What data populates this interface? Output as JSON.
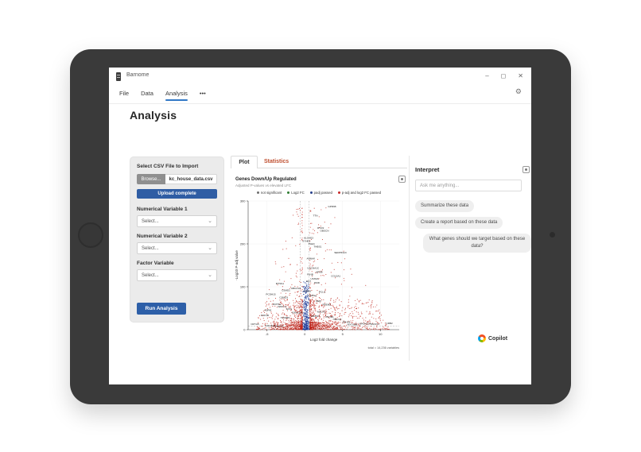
{
  "titlebar": {
    "app_title": "Barnome",
    "minimize": "–",
    "maximize": "◻",
    "close": "✕"
  },
  "menubar": {
    "items": [
      {
        "label": "File",
        "active": false
      },
      {
        "label": "Data",
        "active": false
      },
      {
        "label": "Analysis",
        "active": true
      },
      {
        "label": "•••",
        "active": false
      }
    ],
    "settings_icon": "⚙"
  },
  "page": {
    "heading": "Analysis"
  },
  "import_panel": {
    "title": "Select CSV File to Import",
    "browse_label": "Browse...",
    "filename": "kc_house_data.csv",
    "upload_status": "Upload complete",
    "chevron_icon": "⌄",
    "variables": [
      {
        "label": "Numerical Variable 1",
        "value": "Select..."
      },
      {
        "label": "Numerical Variable 2",
        "value": "Select..."
      },
      {
        "label": "Factor Variable",
        "value": "Select..."
      }
    ],
    "run_button": "Run Analysis"
  },
  "tabs": [
    {
      "label": "Plot",
      "active": true
    },
    {
      "label": "Statistics",
      "active": false
    }
  ],
  "chart_data": {
    "type": "scatter",
    "title": "Genes Down/Up Regulated",
    "subtitle": "Adjusted P-values vs elevated LFC",
    "xlabel": "Log2 fold change",
    "ylabel": "-Log10 P-adj value",
    "xlim": [
      -7.5,
      12.5
    ],
    "ylim": [
      0,
      300
    ],
    "xticks": [
      -5,
      0,
      5,
      10
    ],
    "yticks": [
      0,
      100,
      200,
      300
    ],
    "threshold_vlines": [
      -0.58,
      0.58
    ],
    "threshold_hline": 8,
    "grid": true,
    "legend_position": "top",
    "legend": [
      {
        "label": "not significant",
        "color": "#6e6e6e"
      },
      {
        "label": "Log2 FC",
        "color": "#2e7d32"
      },
      {
        "label": "padj passed",
        "color": "#27408b"
      },
      {
        "label": "p-adj and log2 FC passed",
        "color": "#c62828"
      }
    ],
    "point_clusters": [
      {
        "name": "p-adj and log2 FC passed",
        "color": "#c0281e",
        "count": 1400,
        "x_range": [
          -7,
          11.5
        ],
        "y_profile": "volcano-tails"
      },
      {
        "name": "padj passed",
        "color": "#1f3d99",
        "count": 380,
        "x_range": [
          -0.4,
          0.8
        ],
        "y_profile": "central-band"
      }
    ],
    "labeled_points": [
      {
        "gene": "GPR98",
        "x": 3.6,
        "y": 283
      },
      {
        "gene": "TTN",
        "x": 1.4,
        "y": 262
      },
      {
        "gene": "RYR2",
        "x": 2.1,
        "y": 233
      },
      {
        "gene": "OBSCN",
        "x": 2.6,
        "y": 227
      },
      {
        "gene": "ALOXE3",
        "x": 0.5,
        "y": 210
      },
      {
        "gene": "SYNE1",
        "x": 0.2,
        "y": 203
      },
      {
        "gene": "PLEC",
        "x": 0.9,
        "y": 196
      },
      {
        "gene": "THBS1",
        "x": 1.7,
        "y": 190
      },
      {
        "gene": "SERPINA3",
        "x": 4.7,
        "y": 176
      },
      {
        "gene": "AHNAK",
        "x": 0.8,
        "y": 162
      },
      {
        "gene": "CACNA1C",
        "x": 1.1,
        "y": 140
      },
      {
        "gene": "APOB",
        "x": 1.9,
        "y": 131
      },
      {
        "gene": "FLNB",
        "x": 0.7,
        "y": 125
      },
      {
        "gene": "COL5A1",
        "x": 4.1,
        "y": 121
      },
      {
        "gene": "USH2A",
        "x": 1.3,
        "y": 115
      },
      {
        "gene": "DST",
        "x": 0.5,
        "y": 109
      },
      {
        "gene": "DMD",
        "x": 1.6,
        "y": 106
      },
      {
        "gene": "MTSS1",
        "x": -3.3,
        "y": 104
      },
      {
        "gene": "ABCA13",
        "x": -1.2,
        "y": 93
      },
      {
        "gene": "CSMD1",
        "x": -2.5,
        "y": 88
      },
      {
        "gene": "LAMA5",
        "x": 0.3,
        "y": 86
      },
      {
        "gene": "PCLO",
        "x": 2.3,
        "y": 84
      },
      {
        "gene": "PCDH15",
        "x": -4.5,
        "y": 79
      },
      {
        "gene": "HSPG2",
        "x": 1.0,
        "y": 76
      },
      {
        "gene": "CSMD3",
        "x": -2.8,
        "y": 71
      },
      {
        "gene": "NEB",
        "x": 1.8,
        "y": 63
      },
      {
        "gene": "DCHS2",
        "x": -3.7,
        "y": 56
      },
      {
        "gene": "FREM2",
        "x": 2.9,
        "y": 55
      },
      {
        "gene": "WDFY3",
        "x": -3.0,
        "y": 50
      },
      {
        "gene": "FAT4",
        "x": -2.1,
        "y": 44
      },
      {
        "gene": "ASPM",
        "x": -4.9,
        "y": 42
      },
      {
        "gene": "MACF1",
        "x": 2.2,
        "y": 38
      },
      {
        "gene": "KIAA1109",
        "x": -1.0,
        "y": 36
      },
      {
        "gene": "POF1B",
        "x": -5.3,
        "y": 30
      },
      {
        "gene": "FBXW7",
        "x": 1.4,
        "y": 28
      },
      {
        "gene": "PKHD1",
        "x": 3.3,
        "y": 26
      },
      {
        "gene": "TRIOBP",
        "x": -2.6,
        "y": 24
      },
      {
        "gene": "HMCN1",
        "x": 4.3,
        "y": 20
      },
      {
        "gene": "ZFHX4",
        "x": 5.5,
        "y": 14
      },
      {
        "gene": "CRB2",
        "x": 11.2,
        "y": 11
      },
      {
        "gene": "WASHC2A",
        "x": 8.0,
        "y": 10
      },
      {
        "gene": "MAST4",
        "x": 9.3,
        "y": 9
      },
      {
        "gene": "CMYA5",
        "x": -6.6,
        "y": 9
      },
      {
        "gene": "MYO18B",
        "x": 6.3,
        "y": 8
      },
      {
        "gene": "COL6A6",
        "x": -4.6,
        "y": 6
      },
      {
        "gene": "SH3TC2",
        "x": -3.4,
        "y": 5
      }
    ],
    "caption": "total = 14,236 variables"
  },
  "interpret": {
    "title": "Interpret",
    "input_placeholder": "Ask me anything...",
    "suggestions": [
      "Summarize these data",
      "Create a report based on these data",
      "What genes should we target based on these data?"
    ]
  },
  "branding": {
    "copilot_label": "Copilot"
  }
}
